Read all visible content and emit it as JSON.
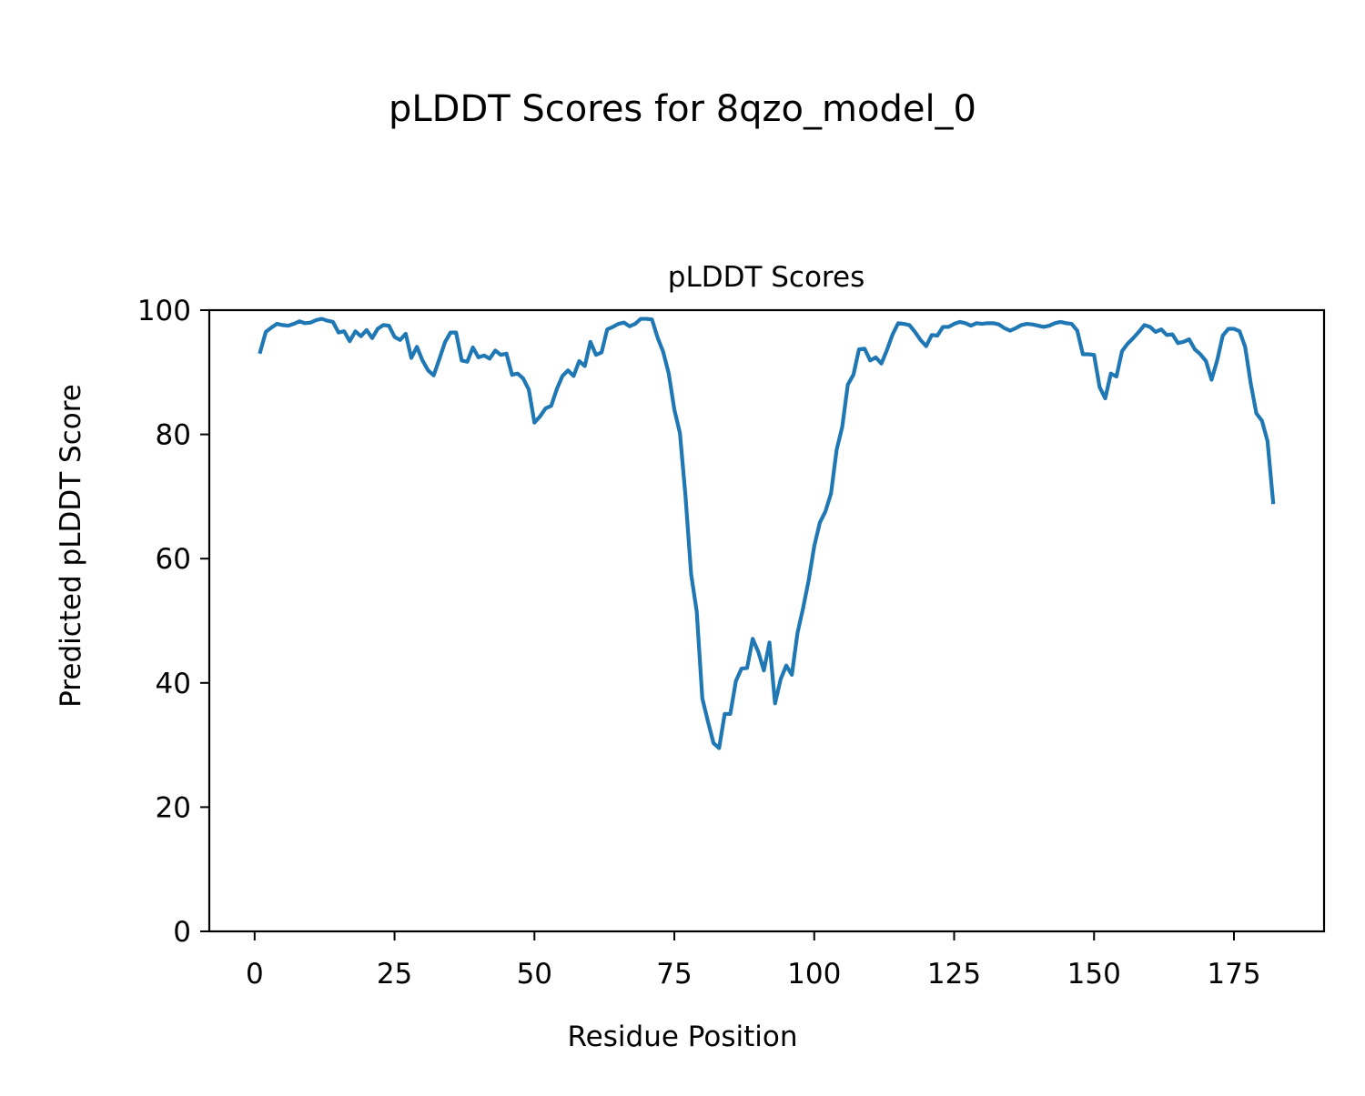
{
  "figure": {
    "suptitle": "pLDDT Scores for 8qzo_model_0"
  },
  "chart_data": {
    "type": "line",
    "title": "pLDDT Scores",
    "xlabel": "Residue Position",
    "ylabel": "Predicted pLDDT Score",
    "xlim": [
      -8.1,
      191.1
    ],
    "ylim": [
      0,
      100
    ],
    "xticks": [
      0,
      25,
      50,
      75,
      100,
      125,
      150,
      175
    ],
    "yticks": [
      0,
      20,
      40,
      60,
      80,
      100
    ],
    "grid": false,
    "series_color": "#1f77b4",
    "series": [
      {
        "x": [
          1,
          2,
          3,
          4,
          5,
          6,
          7,
          8,
          9,
          10,
          11,
          12,
          13,
          14,
          15,
          16,
          17,
          18,
          19,
          20,
          21,
          22,
          23,
          24,
          25,
          26,
          27,
          28,
          29,
          30,
          31,
          32,
          33,
          34,
          35,
          36,
          37,
          38,
          39,
          40,
          41,
          42,
          43,
          44,
          45,
          46,
          47,
          48,
          49,
          50,
          51,
          52,
          53,
          54,
          55,
          56,
          57,
          58,
          59,
          60,
          61,
          62,
          63,
          64,
          65,
          66,
          67,
          68,
          69,
          70,
          71,
          72,
          73,
          74,
          75,
          76,
          77,
          78,
          79,
          80,
          81,
          82,
          83,
          84,
          85,
          86,
          87,
          88,
          89,
          90,
          91,
          92,
          93,
          94,
          95,
          96,
          97,
          98,
          99,
          100,
          101,
          102,
          103,
          104,
          105,
          106,
          107,
          108,
          109,
          110,
          111,
          112,
          113,
          114,
          115,
          116,
          117,
          118,
          119,
          120,
          121,
          122,
          123,
          124,
          125,
          126,
          127,
          128,
          129,
          130,
          131,
          132,
          133,
          134,
          135,
          136,
          137,
          138,
          139,
          140,
          141,
          142,
          143,
          144,
          145,
          146,
          147,
          148,
          149,
          150,
          151,
          152,
          153,
          154,
          155,
          156,
          157,
          158,
          159,
          160,
          161,
          162,
          163,
          164,
          165,
          166,
          167,
          168,
          169,
          170,
          171,
          172,
          173,
          174,
          175,
          176,
          177,
          178,
          179,
          180,
          181,
          182
        ],
        "y": [
          93.3,
          96.5,
          97.2,
          97.8,
          97.6,
          97.5,
          97.8,
          98.2,
          97.9,
          98.0,
          98.4,
          98.6,
          98.3,
          98.1,
          96.4,
          96.6,
          95.0,
          96.6,
          95.8,
          96.8,
          95.5,
          97.0,
          97.6,
          97.5,
          95.7,
          95.2,
          96.2,
          92.3,
          94.1,
          91.9,
          90.3,
          89.5,
          92.1,
          94.8,
          96.4,
          96.4,
          91.9,
          91.7,
          94.0,
          92.4,
          92.7,
          92.2,
          93.5,
          92.8,
          93.0,
          89.6,
          89.8,
          89.0,
          87.2,
          81.9,
          82.9,
          84.2,
          84.6,
          87.3,
          89.4,
          90.3,
          89.4,
          91.8,
          91.0,
          94.9,
          92.8,
          93.2,
          96.9,
          97.3,
          97.8,
          98.0,
          97.4,
          97.8,
          98.6,
          98.6,
          98.5,
          95.6,
          93.3,
          89.8,
          84.0,
          80.2,
          70.0,
          57.5,
          51.5,
          37.5,
          33.8,
          30.3,
          29.5,
          35.0,
          35.0,
          40.3,
          42.3,
          42.4,
          47.1,
          45.0,
          42.0,
          46.5,
          36.7,
          40.6,
          42.8,
          41.3,
          48.0,
          52.0,
          56.5,
          62.0,
          65.8,
          67.6,
          70.5,
          77.5,
          81.2,
          88.0,
          89.6,
          93.7,
          93.8,
          91.9,
          92.4,
          91.4,
          93.6,
          96.1,
          97.9,
          97.8,
          97.6,
          96.5,
          95.2,
          94.2,
          96.0,
          95.9,
          97.3,
          97.3,
          97.8,
          98.1,
          97.9,
          97.5,
          97.9,
          97.8,
          97.9,
          97.9,
          97.7,
          97.1,
          96.7,
          97.1,
          97.6,
          97.8,
          97.7,
          97.5,
          97.3,
          97.5,
          97.9,
          98.1,
          97.9,
          97.8,
          96.7,
          92.9,
          92.9,
          92.8,
          87.6,
          85.8,
          89.8,
          89.3,
          93.4,
          94.6,
          95.5,
          96.5,
          97.6,
          97.3,
          96.5,
          96.9,
          96.0,
          96.1,
          94.7,
          94.9,
          95.3,
          93.7,
          92.9,
          91.8,
          88.8,
          91.9,
          95.9,
          97.0,
          97.0,
          96.6,
          94.1,
          88.2,
          83.4,
          82.2,
          78.9,
          69.1
        ]
      }
    ]
  }
}
